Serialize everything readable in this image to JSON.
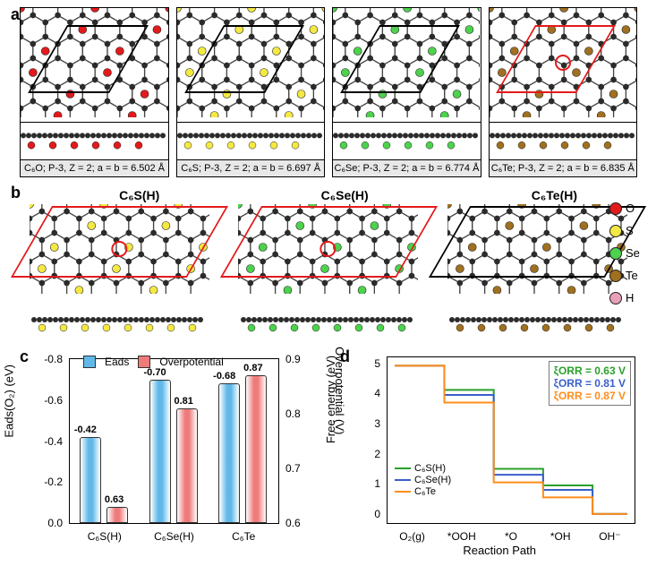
{
  "panelLabels": {
    "a": "a",
    "b": "b",
    "c": "c",
    "d": "d"
  },
  "colors": {
    "O": "#e31a1c",
    "S": "#f4e842",
    "Se": "#4dd24d",
    "Te": "#a07020",
    "H": "#e8a0b8",
    "C": "#2b2b2b",
    "barBlue": "#5fb8e8",
    "barRed": "#ef7a7a",
    "lineGreen": "#2aa02a",
    "lineBlue": "#3a5fcd",
    "lineOrange": "#ff8c1a",
    "rhombBlack": "#000000",
    "rhombRed": "#e31a1c",
    "textGreen": "#2aa02a",
    "textBlue": "#3a5fcd",
    "textOrange": "#ff8c1a"
  },
  "panelA": {
    "structs": [
      {
        "element": "O",
        "caption": "C₆O; P-3, Z = 2; a = b = 6.502 Å",
        "rhombColor": "#000000"
      },
      {
        "element": "S",
        "caption": "C₆S; P-3, Z = 2; a = b = 6.697 Å",
        "rhombColor": "#000000"
      },
      {
        "element": "Se",
        "caption": "C₆Se; P-3, Z = 2; a = b = 6.774 Å",
        "rhombColor": "#000000"
      },
      {
        "element": "Te",
        "caption": "C₆Te; P-3, Z = 2; a = b = 6.835 Å",
        "rhombColor": "#e31a1c"
      }
    ]
  },
  "panelB": {
    "cells": [
      {
        "label": "C₆S(H)",
        "element": "S",
        "rhombColor": "#e31a1c"
      },
      {
        "label": "C₆Se(H)",
        "element": "Se",
        "rhombColor": "#e31a1c"
      },
      {
        "label": "C₆Te(H)",
        "element": "Te",
        "rhombColor": "#000000"
      }
    ]
  },
  "legend": [
    {
      "label": "O",
      "colorKey": "O"
    },
    {
      "label": "S",
      "colorKey": "S"
    },
    {
      "label": "Se",
      "colorKey": "Se"
    },
    {
      "label": "Te",
      "colorKey": "Te"
    },
    {
      "label": "H",
      "colorKey": "H"
    }
  ],
  "panelC": {
    "type": "bar",
    "legend": {
      "left": "Eads",
      "right": "Overpotential"
    },
    "yLeft": {
      "label": "Eads(O₂) (eV)",
      "min": 0,
      "max": -0.8,
      "ticks": [
        "0.0",
        "-0.2",
        "-0.4",
        "-0.6",
        "-0.8"
      ]
    },
    "yRight": {
      "label": "Overpotential (V)",
      "min": 0.6,
      "max": 0.9,
      "ticks": [
        "0.6",
        "0.7",
        "0.8",
        "0.9"
      ]
    },
    "categories": [
      "C₆S(H)",
      "C₆Se(H)",
      "C₆Te"
    ],
    "eads": [
      -0.42,
      -0.7,
      -0.68
    ],
    "eadsLabels": [
      "-0.42",
      "-0.70",
      "-0.68"
    ],
    "over": [
      0.63,
      0.81,
      0.87
    ],
    "overLabels": [
      "0.63",
      "0.81",
      "0.87"
    ]
  },
  "panelD": {
    "type": "step",
    "xLabel": "Reaction Path",
    "yLabel": "Free energy (eV)",
    "yTicks": [
      "0",
      "1",
      "2",
      "3",
      "4",
      "5"
    ],
    "yMin": -0.3,
    "yMax": 5.2,
    "xCats": [
      "O₂(g)",
      "*OOH",
      "*O",
      "*OH",
      "OH⁻"
    ],
    "etaBox": [
      {
        "text": "ξORR = 0.63 V",
        "color": "#2aa02a"
      },
      {
        "text": "ξORR = 0.81 V",
        "color": "#3a5fcd"
      },
      {
        "text": "ξORR = 0.87 V",
        "color": "#ff8c1a"
      }
    ],
    "series": [
      {
        "name": "C₆S(H)",
        "color": "#2aa02a",
        "y": [
          4.92,
          4.12,
          1.5,
          0.95,
          0.0
        ]
      },
      {
        "name": "C₆Se(H)",
        "color": "#3a5fcd",
        "y": [
          4.92,
          3.95,
          1.3,
          0.8,
          0.0
        ]
      },
      {
        "name": "C₆Te",
        "color": "#ff8c1a",
        "y": [
          4.92,
          3.7,
          1.05,
          0.55,
          0.0
        ]
      }
    ],
    "inlineLegend": [
      {
        "text": "C₆S(H)",
        "color": "#2aa02a"
      },
      {
        "text": "C₆Se(H)",
        "color": "#3a5fcd"
      },
      {
        "text": "C₆Te",
        "color": "#ff8c1a"
      }
    ]
  }
}
